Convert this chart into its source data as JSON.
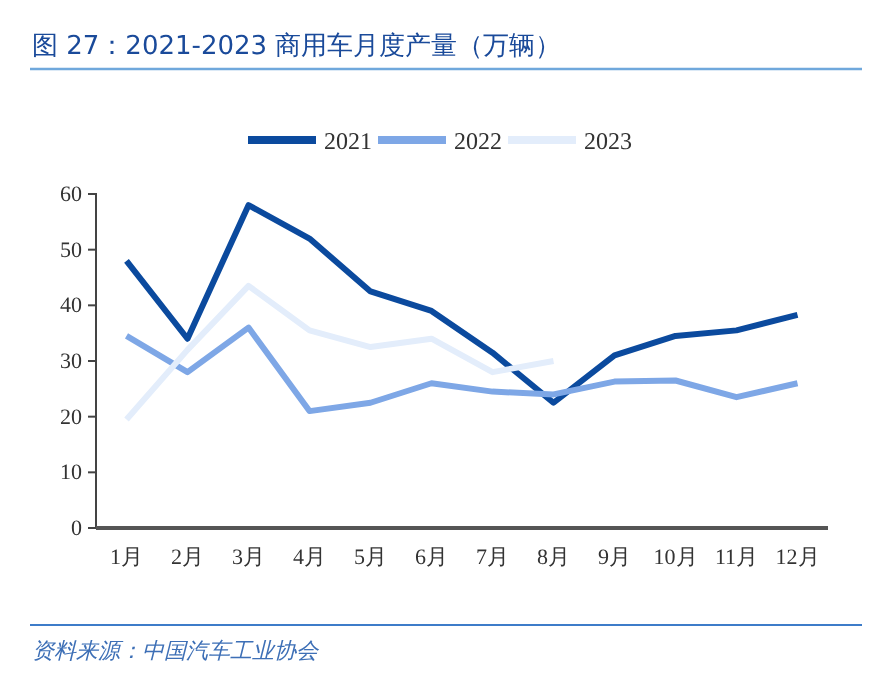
{
  "chart_data": {
    "type": "line",
    "title": "图 27：2021-2023 商用车月度产量（万辆）",
    "categories": [
      "1月",
      "2月",
      "3月",
      "4月",
      "5月",
      "6月",
      "7月",
      "8月",
      "9月",
      "10月",
      "11月",
      "12月"
    ],
    "series": [
      {
        "name": "2021",
        "color": "#0b4a9e",
        "values": [
          48,
          34,
          58,
          52,
          42.5,
          39,
          31.5,
          22.5,
          31,
          34.5,
          35.5,
          38.3
        ]
      },
      {
        "name": "2022",
        "color": "#7ea7e6",
        "values": [
          34.5,
          28,
          36,
          21,
          22.5,
          26,
          24.5,
          24,
          26.3,
          26.5,
          23.5,
          26
        ]
      },
      {
        "name": "2023",
        "color": "#e3edfb",
        "values": [
          19.5,
          32,
          43.5,
          35.5,
          32.5,
          34,
          28,
          30,
          null,
          null,
          null,
          null
        ]
      }
    ],
    "ylim": [
      0,
      60
    ],
    "yticks": [
      0,
      10,
      20,
      30,
      40,
      50,
      60
    ],
    "grid": false,
    "legend": "top",
    "marker": "none",
    "line_style": "solid",
    "annotations": [
      "资料来源：中国汽车工业协会"
    ]
  }
}
